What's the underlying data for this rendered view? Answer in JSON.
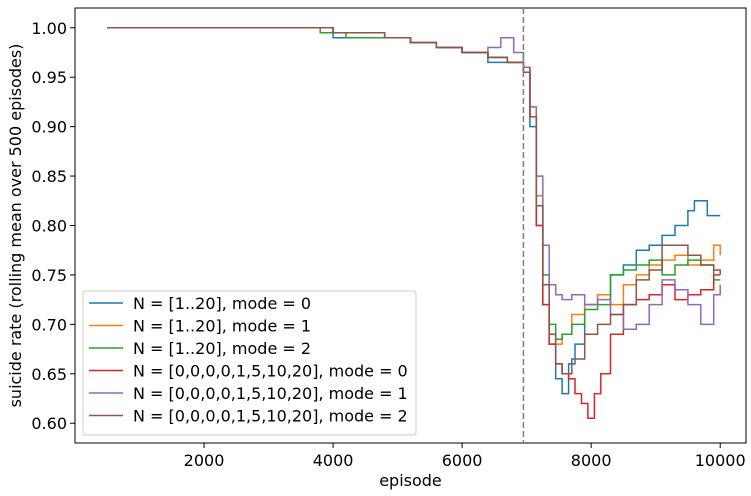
{
  "chart_data": {
    "type": "line",
    "xlabel": "episode",
    "ylabel": "suicide rate (rolling mean over 500 episodes)",
    "xlim": [
      0,
      10400
    ],
    "ylim": [
      0.58,
      1.02
    ],
    "xticks": [
      2000,
      4000,
      6000,
      8000,
      10000
    ],
    "yticks": [
      0.6,
      0.65,
      0.7,
      0.75,
      0.8,
      0.85,
      0.9,
      0.95,
      1.0
    ],
    "grid": false,
    "legend_position": "lower-left",
    "vline": {
      "x": 6950,
      "color": "#7f7f7f",
      "style": "dashed"
    },
    "series": [
      {
        "name": "N = [1..20], mode = 0",
        "color": "#1f77b4",
        "x": [
          500,
          3000,
          4000,
          4800,
          5200,
          5600,
          6000,
          6400,
          6700,
          6950,
          7050,
          7150,
          7250,
          7350,
          7450,
          7550,
          7650,
          7750,
          7900,
          8100,
          8300,
          8500,
          8700,
          8900,
          9100,
          9300,
          9500,
          9600,
          9800,
          10000
        ],
        "y": [
          1.0,
          1.0,
          0.99,
          0.99,
          0.985,
          0.98,
          0.975,
          0.965,
          0.965,
          0.96,
          0.9,
          0.8,
          0.72,
          0.68,
          0.645,
          0.63,
          0.66,
          0.68,
          0.72,
          0.73,
          0.75,
          0.76,
          0.775,
          0.78,
          0.79,
          0.8,
          0.815,
          0.825,
          0.81,
          0.81
        ]
      },
      {
        "name": "N = [1..20], mode = 1",
        "color": "#ff7f0e",
        "x": [
          500,
          3000,
          4000,
          4800,
          5200,
          5600,
          6000,
          6400,
          6700,
          6950,
          7050,
          7150,
          7250,
          7350,
          7450,
          7550,
          7700,
          7900,
          8100,
          8300,
          8500,
          8700,
          8900,
          9100,
          9300,
          9500,
          9700,
          9900,
          10000
        ],
        "y": [
          1.0,
          1.0,
          0.995,
          0.99,
          0.985,
          0.98,
          0.975,
          0.97,
          0.965,
          0.96,
          0.92,
          0.83,
          0.74,
          0.69,
          0.68,
          0.69,
          0.71,
          0.72,
          0.73,
          0.72,
          0.74,
          0.75,
          0.76,
          0.765,
          0.77,
          0.76,
          0.765,
          0.78,
          0.77
        ]
      },
      {
        "name": "N = [1..20], mode = 2",
        "color": "#2ca02c",
        "x": [
          500,
          3000,
          3800,
          4200,
          4800,
          5200,
          5600,
          6000,
          6400,
          6700,
          6950,
          7050,
          7150,
          7250,
          7350,
          7450,
          7550,
          7700,
          7900,
          8100,
          8300,
          8500,
          8700,
          8900,
          9100,
          9300,
          9500,
          9700,
          9900,
          10000
        ],
        "y": [
          1.0,
          1.0,
          0.995,
          0.99,
          0.99,
          0.985,
          0.98,
          0.975,
          0.97,
          0.965,
          0.955,
          0.91,
          0.82,
          0.75,
          0.7,
          0.685,
          0.69,
          0.7,
          0.715,
          0.72,
          0.75,
          0.755,
          0.76,
          0.765,
          0.75,
          0.76,
          0.765,
          0.76,
          0.745,
          0.745
        ]
      },
      {
        "name": "N = [0,0,0,0,1,5,10,20], mode = 0",
        "color": "#d62728",
        "x": [
          500,
          3000,
          4000,
          4800,
          5200,
          5600,
          6000,
          6400,
          6700,
          6950,
          7050,
          7150,
          7250,
          7350,
          7450,
          7550,
          7650,
          7750,
          7850,
          7950,
          8050,
          8150,
          8300,
          8500,
          8700,
          8900,
          9100,
          9300,
          9500,
          9700,
          9900,
          10000
        ],
        "y": [
          1.0,
          1.0,
          0.995,
          0.99,
          0.985,
          0.98,
          0.975,
          0.97,
          0.965,
          0.96,
          0.91,
          0.8,
          0.72,
          0.68,
          0.66,
          0.65,
          0.645,
          0.63,
          0.62,
          0.605,
          0.63,
          0.65,
          0.69,
          0.72,
          0.725,
          0.73,
          0.74,
          0.725,
          0.73,
          0.735,
          0.75,
          0.75
        ]
      },
      {
        "name": "N = [0,0,0,0,1,5,10,20], mode = 1",
        "color": "#9467bd",
        "x": [
          500,
          3000,
          4000,
          4800,
          5200,
          5600,
          6000,
          6400,
          6600,
          6800,
          6950,
          7050,
          7150,
          7250,
          7350,
          7450,
          7550,
          7700,
          7900,
          8100,
          8300,
          8500,
          8700,
          8900,
          9100,
          9300,
          9500,
          9700,
          9900,
          10000
        ],
        "y": [
          1.0,
          1.0,
          0.995,
          0.99,
          0.985,
          0.98,
          0.975,
          0.98,
          0.99,
          0.975,
          0.96,
          0.92,
          0.85,
          0.78,
          0.74,
          0.73,
          0.725,
          0.73,
          0.72,
          0.725,
          0.71,
          0.695,
          0.7,
          0.72,
          0.745,
          0.735,
          0.72,
          0.7,
          0.73,
          0.74
        ]
      },
      {
        "name": "N = [0,0,0,0,1,5,10,20], mode = 2",
        "color": "#8c564b",
        "x": [
          500,
          3000,
          4000,
          4800,
          5200,
          5600,
          6000,
          6400,
          6700,
          6950,
          7050,
          7150,
          7250,
          7350,
          7450,
          7550,
          7700,
          7900,
          8100,
          8300,
          8500,
          8700,
          8900,
          9100,
          9300,
          9500,
          9700,
          9900,
          10000
        ],
        "y": [
          1.0,
          1.0,
          0.995,
          0.99,
          0.985,
          0.98,
          0.975,
          0.97,
          0.965,
          0.955,
          0.91,
          0.82,
          0.74,
          0.69,
          0.66,
          0.65,
          0.665,
          0.69,
          0.7,
          0.71,
          0.72,
          0.745,
          0.755,
          0.78,
          0.78,
          0.77,
          0.76,
          0.755,
          0.75
        ]
      }
    ]
  }
}
